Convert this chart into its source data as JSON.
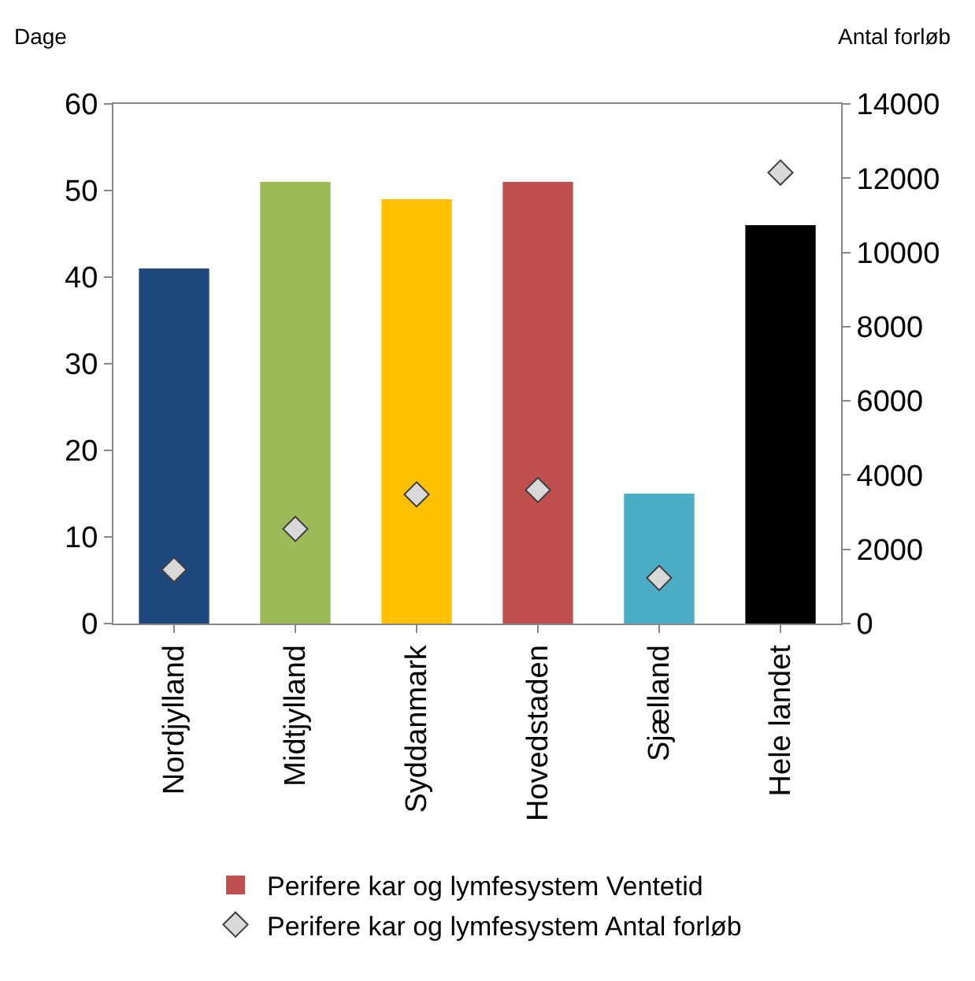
{
  "chart_data": {
    "type": "bar",
    "ylabel": "Dage",
    "y2label": "Antal forløb",
    "categories": [
      "Nordjylland",
      "Midtjylland",
      "Syddanmark",
      "Hovedstaden",
      "Sjælland",
      "Hele landet"
    ],
    "series": [
      {
        "name": "Perifere kar og lymfesystem Ventetid",
        "color": "#c0504d",
        "colors": [
          "#1f497d",
          "#9bbb59",
          "#ffc000",
          "#c0504d",
          "#4bacc6",
          "#000000"
        ],
        "values": [
          41,
          51,
          49,
          51,
          15,
          46
        ]
      },
      {
        "name": "Perifere kar og lymfesystem Antal forløb",
        "type": "scatter",
        "axis": "y2",
        "marker": "diamond",
        "color": "#d9d9d9",
        "values": [
          1450,
          2550,
          3480,
          3600,
          1230,
          12150
        ]
      }
    ],
    "ylim": [
      0,
      60
    ],
    "yticks": [
      0,
      10,
      20,
      30,
      40,
      50,
      60
    ],
    "y2lim": [
      0,
      14000
    ],
    "y2ticks": [
      0,
      2000,
      4000,
      6000,
      8000,
      10000,
      12000,
      14000
    ],
    "grid": false,
    "legend": "bottom"
  }
}
